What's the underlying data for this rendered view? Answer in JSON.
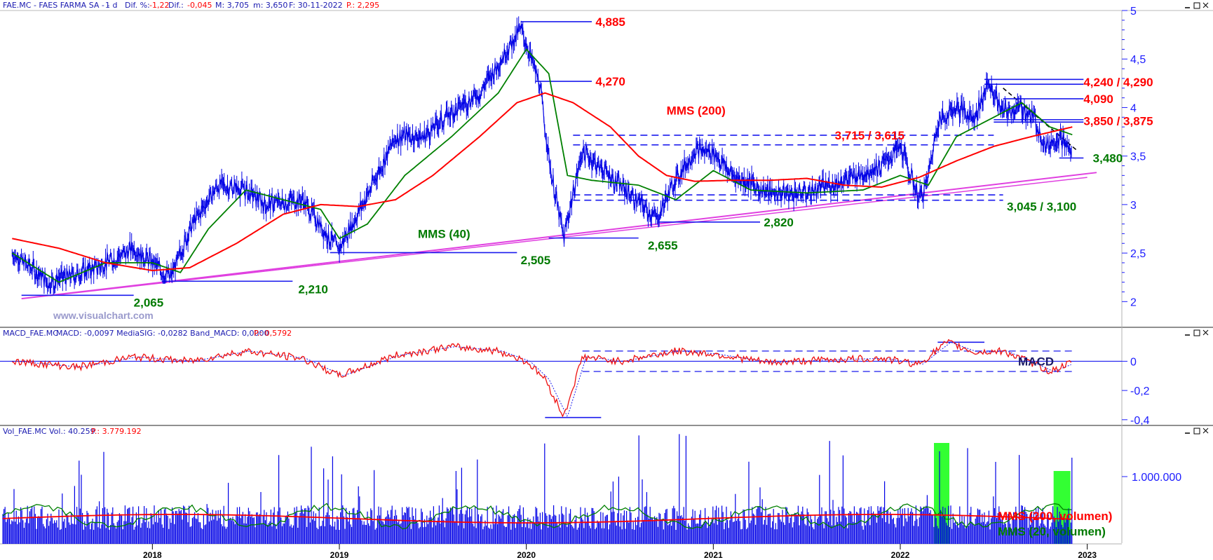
{
  "header": {
    "price": {
      "symbol": "FAE.MC - FAES FARMA SA - -",
      "period": "1 d",
      "change_label": "Dif. %:",
      "change_pct": "-1,22",
      "diff_label": "Dif.:",
      "diff": "-0,045",
      "max_label": "M: 3,705",
      "min_label": "m: 3,650",
      "date_label": "F: 30-11-2022",
      "p_label": "P.: 2,295"
    },
    "macd": {
      "symbol": "MACD_FAE.MC",
      "values": "MACD: -0,0097  MediaSIG: -0,0282  Band_MACD: 0,0000",
      "p_label": "P.: 0,5792"
    },
    "volume": {
      "symbol": "Vol_FAE.MC",
      "values": "Vol.: 40.259",
      "p_label": "P.: 3.779.192"
    }
  },
  "watermark": "www.visualchart.com",
  "colors": {
    "price": "#0000e6",
    "mms200": "#ff0000",
    "mms40": "#008000",
    "trendline": "#e040e0",
    "axis": "#1c1cff",
    "level_red": "#ff0000",
    "level_green": "#007a00",
    "volume_highlight": "#33ff33"
  },
  "window_icons": [
    "minimize-icon",
    "maximize-icon",
    "close-icon"
  ],
  "chart_data": [
    {
      "type": "line",
      "panel": "price",
      "x_ticks": [
        "2018",
        "2019",
        "2020",
        "2021",
        "2022",
        "2023"
      ],
      "y_ticks": [
        "2",
        "2,5",
        "3",
        "3,5",
        "4",
        "4,5",
        "5"
      ],
      "ylim": [
        1.8,
        5.0
      ],
      "series": [
        {
          "name": "",
          "x": [
            2017.25,
            2017.45,
            2017.7,
            2017.9,
            2018.1,
            2018.2,
            2018.35,
            2018.5,
            2018.6,
            2018.8,
            2018.95,
            2019.0,
            2019.15,
            2019.3,
            2019.45,
            2019.6,
            2019.75,
            2019.85,
            2019.97,
            2020.07,
            2020.13,
            2020.2,
            2020.3,
            2020.5,
            2020.7,
            2020.78,
            2020.9,
            2021.0,
            2021.1,
            2021.3,
            2021.5,
            2021.7,
            2021.9,
            2022.0,
            2022.1,
            2022.14,
            2022.2,
            2022.3,
            2022.4,
            2022.47,
            2022.55,
            2022.65,
            2022.72,
            2022.78,
            2022.85,
            2022.92
          ],
          "y": [
            2.5,
            2.2,
            2.35,
            2.55,
            2.25,
            2.75,
            3.2,
            3.15,
            3.0,
            3.05,
            2.65,
            2.55,
            3.1,
            3.7,
            3.7,
            3.95,
            4.15,
            4.45,
            4.82,
            4.25,
            3.35,
            2.66,
            3.55,
            3.2,
            2.85,
            3.2,
            3.55,
            3.55,
            3.3,
            3.12,
            3.12,
            3.25,
            3.4,
            3.6,
            3.06,
            3.2,
            3.85,
            4.0,
            3.9,
            4.25,
            3.95,
            4.0,
            3.88,
            3.6,
            3.7,
            3.52
          ]
        },
        {
          "name": "MMS (40)",
          "x": [
            2017.25,
            2017.5,
            2017.75,
            2018.0,
            2018.15,
            2018.3,
            2018.5,
            2018.7,
            2018.9,
            2019.0,
            2019.15,
            2019.35,
            2019.6,
            2019.85,
            2020.0,
            2020.12,
            2020.22,
            2020.35,
            2020.6,
            2020.8,
            2021.0,
            2021.2,
            2021.5,
            2021.8,
            2022.0,
            2022.15,
            2022.3,
            2022.5,
            2022.65,
            2022.8,
            2022.92
          ],
          "y": [
            2.5,
            2.2,
            2.4,
            2.4,
            2.3,
            2.75,
            3.15,
            3.05,
            2.95,
            2.65,
            2.8,
            3.3,
            3.7,
            4.15,
            4.6,
            4.35,
            3.3,
            3.25,
            3.2,
            3.05,
            3.35,
            3.15,
            3.12,
            3.15,
            3.3,
            3.2,
            3.7,
            3.9,
            4.05,
            3.8,
            3.72
          ]
        },
        {
          "name": "MMS (200)",
          "x": [
            2017.25,
            2017.5,
            2017.75,
            2018.0,
            2018.2,
            2018.45,
            2018.7,
            2018.9,
            2019.1,
            2019.3,
            2019.5,
            2019.75,
            2019.95,
            2020.1,
            2020.25,
            2020.45,
            2020.6,
            2020.75,
            2020.9,
            2021.1,
            2021.3,
            2021.5,
            2021.7,
            2021.9,
            2022.1,
            2022.3,
            2022.5,
            2022.7,
            2022.92
          ],
          "y": [
            2.65,
            2.55,
            2.4,
            2.32,
            2.35,
            2.6,
            2.9,
            3.0,
            2.98,
            3.05,
            3.3,
            3.7,
            4.05,
            4.15,
            4.05,
            3.8,
            3.5,
            3.3,
            3.24,
            3.25,
            3.25,
            3.27,
            3.2,
            3.18,
            3.28,
            3.45,
            3.6,
            3.7,
            3.8
          ]
        }
      ],
      "annotations": [
        {
          "text": "4,885",
          "y": 4.885,
          "color": "red"
        },
        {
          "text": "4,270",
          "y": 4.27,
          "color": "red"
        },
        {
          "text": "MMS (200)",
          "color": "red"
        },
        {
          "text": "3,715 / 3,615",
          "y": 3.715,
          "color": "red"
        },
        {
          "text": "4,240 / 4,290",
          "y": 4.29,
          "color": "red"
        },
        {
          "text": "4,090",
          "y": 4.09,
          "color": "red"
        },
        {
          "text": "3,850 / 3,875",
          "y": 3.875,
          "color": "red"
        },
        {
          "text": "3,480",
          "y": 3.48,
          "color": "green"
        },
        {
          "text": "3,045 / 3,100",
          "y": 3.1,
          "color": "green"
        },
        {
          "text": "2,820",
          "y": 2.82,
          "color": "green"
        },
        {
          "text": "2,655",
          "y": 2.655,
          "color": "green"
        },
        {
          "text": "2,505",
          "y": 2.505,
          "color": "green"
        },
        {
          "text": "2,210",
          "y": 2.21,
          "color": "green"
        },
        {
          "text": "2,065",
          "y": 2.065,
          "color": "green"
        },
        {
          "text": "MMS (40)",
          "color": "green"
        }
      ]
    },
    {
      "type": "line",
      "panel": "macd",
      "y_ticks": [
        "0",
        "-0,2",
        "-0,4"
      ],
      "ylim": [
        -0.42,
        0.17
      ],
      "series": [
        {
          "name": "MACD",
          "x": [
            2017.25,
            2017.6,
            2017.9,
            2018.2,
            2018.5,
            2018.8,
            2019.0,
            2019.3,
            2019.6,
            2019.85,
            2020.0,
            2020.1,
            2020.2,
            2020.3,
            2020.5,
            2020.8,
            2021.0,
            2021.3,
            2021.6,
            2021.9,
            2022.1,
            2022.25,
            2022.4,
            2022.55,
            2022.7,
            2022.8,
            2022.92
          ],
          "y": [
            0.0,
            -0.04,
            0.03,
            0.0,
            0.07,
            0.02,
            -0.1,
            0.04,
            0.1,
            0.07,
            0.0,
            -0.12,
            -0.38,
            0.03,
            0.0,
            0.07,
            0.05,
            -0.01,
            0.01,
            0.02,
            -0.02,
            0.13,
            0.06,
            0.07,
            -0.01,
            -0.07,
            -0.01
          ]
        }
      ],
      "annotations": [
        {
          "text": "MACD"
        }
      ]
    },
    {
      "type": "bar",
      "panel": "volume",
      "y_ticks": [
        "1.000.000"
      ],
      "series": [
        {
          "name": "MMS (200, volumen)"
        },
        {
          "name": "MMS (20, volumen)"
        }
      ]
    }
  ]
}
